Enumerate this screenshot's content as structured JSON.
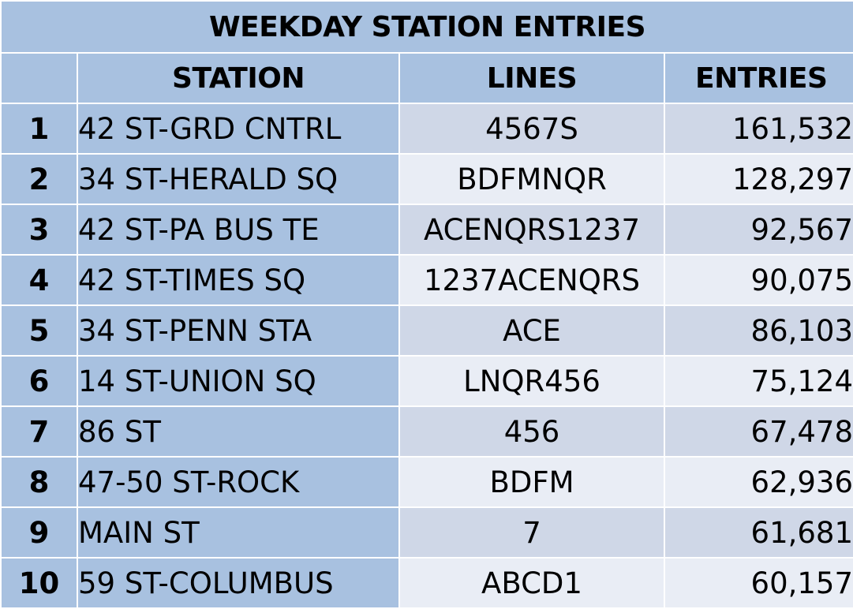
{
  "table": {
    "title": "WEEKDAY STATION ENTRIES",
    "columns": {
      "rank": "",
      "station": "STATION",
      "lines": "LINES",
      "entries": "ENTRIES"
    },
    "rows": [
      {
        "rank": "1",
        "station": "42 ST-GRD CNTRL",
        "lines": "4567S",
        "entries": "161,532"
      },
      {
        "rank": "2",
        "station": "34 ST-HERALD SQ",
        "lines": "BDFMNQR",
        "entries": "128,297"
      },
      {
        "rank": "3",
        "station": "42 ST-PA BUS TE",
        "lines": "ACENQRS1237",
        "entries": "92,567"
      },
      {
        "rank": "4",
        "station": "42 ST-TIMES SQ",
        "lines": "1237ACENQRS",
        "entries": "90,075"
      },
      {
        "rank": "5",
        "station": "34 ST-PENN STA",
        "lines": "ACE",
        "entries": "86,103"
      },
      {
        "rank": "6",
        "station": "14 ST-UNION SQ",
        "lines": "LNQR456",
        "entries": "75,124"
      },
      {
        "rank": "7",
        "station": "86 ST",
        "lines": "456",
        "entries": "67,478"
      },
      {
        "rank": "8",
        "station": "47-50 ST-ROCK",
        "lines": "BDFM",
        "entries": "62,936"
      },
      {
        "rank": "9",
        "station": "MAIN ST",
        "lines": "7",
        "entries": "61,681"
      },
      {
        "rank": "10",
        "station": "59 ST-COLUMBUS",
        "lines": "ABCD1",
        "entries": "60,157"
      }
    ]
  },
  "colors": {
    "header_fill": "#a8c1e0",
    "row_band_dark": "#cfd7e7",
    "row_band_light": "#e9edf5",
    "grid_line": "#ffffff"
  }
}
